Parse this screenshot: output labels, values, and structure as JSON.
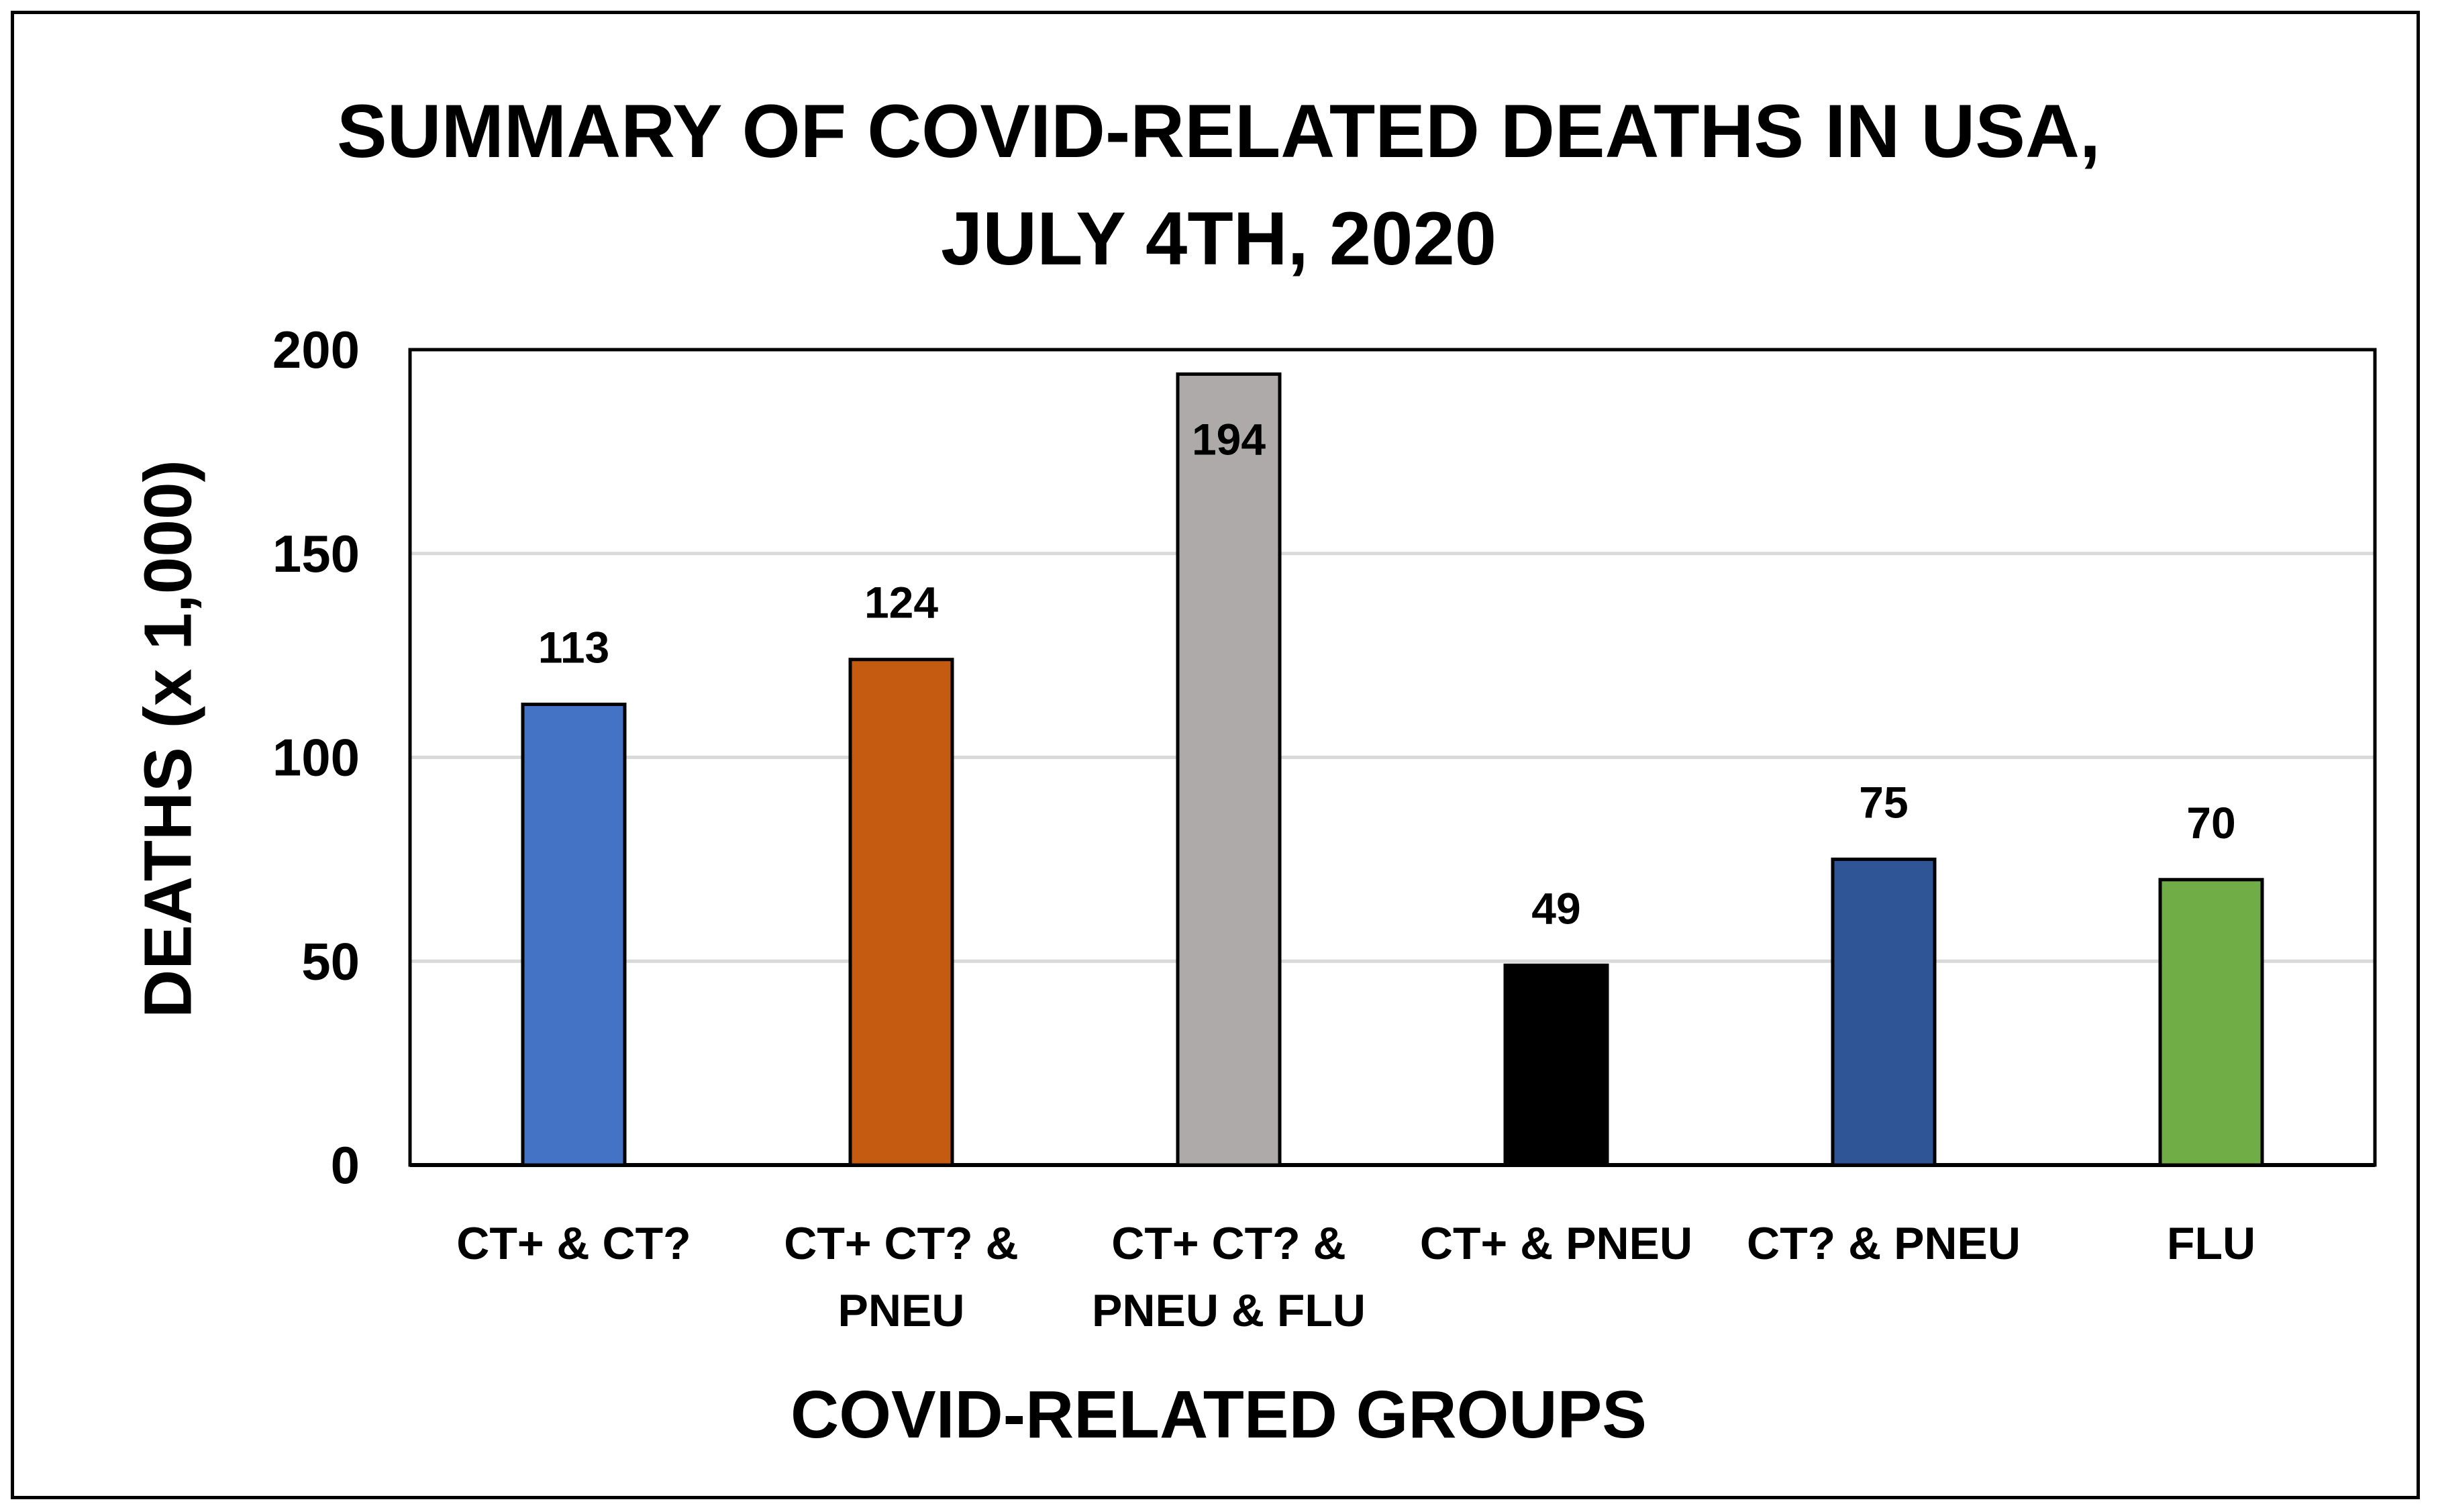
{
  "chart_data": {
    "type": "bar",
    "title_lines": [
      "SUMMARY OF COVID-RELATED DEATHS IN USA,",
      "JULY 4TH, 2020"
    ],
    "xlabel": "COVID-RELATED GROUPS",
    "ylabel": "DEATHS (x 1,000)",
    "ylim": [
      0,
      200
    ],
    "yticks": [
      0,
      50,
      100,
      150,
      200
    ],
    "grid": true,
    "categories": [
      [
        "CT+ & CT?"
      ],
      [
        "CT+ CT? &",
        "PNEU"
      ],
      [
        "CT+ CT? &",
        "PNEU & FLU"
      ],
      [
        "CT+ & PNEU"
      ],
      [
        "CT? & PNEU"
      ],
      [
        "FLU"
      ]
    ],
    "values": [
      113,
      124,
      194,
      49,
      75,
      70
    ],
    "data_labels": [
      "113",
      "124",
      "194",
      "49",
      "75",
      "70"
    ],
    "label_inside": [
      false,
      false,
      true,
      false,
      false,
      false
    ],
    "colors": [
      "#4472C4",
      "#C55A11",
      "#AEAAAA",
      "#000000",
      "#2F5597",
      "#70AD47"
    ]
  }
}
